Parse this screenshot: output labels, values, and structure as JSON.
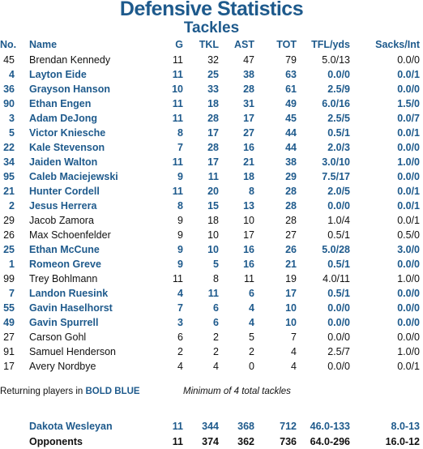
{
  "title": "Defensive Statistics",
  "subtitle": "Tackles",
  "columns": {
    "no": "No.",
    "name": "Name",
    "g": "G",
    "tkl": "TKL",
    "ast": "AST",
    "tot": "TOT",
    "tfl": "TFL/yds",
    "sacks": "Sacks/Int"
  },
  "players": [
    {
      "no": "45",
      "name": "Brendan Kennedy",
      "g": "11",
      "tkl": "32",
      "ast": "47",
      "tot": "79",
      "tfl": "5.0/13",
      "sacks": "0.0/0",
      "returning": false
    },
    {
      "no": "4",
      "name": "Layton Eide",
      "g": "11",
      "tkl": "25",
      "ast": "38",
      "tot": "63",
      "tfl": "0.0/0",
      "sacks": "0.0/1",
      "returning": true
    },
    {
      "no": "36",
      "name": "Grayson Hanson",
      "g": "10",
      "tkl": "33",
      "ast": "28",
      "tot": "61",
      "tfl": "2.5/9",
      "sacks": "0.0/0",
      "returning": true
    },
    {
      "no": "90",
      "name": "Ethan Engen",
      "g": "11",
      "tkl": "18",
      "ast": "31",
      "tot": "49",
      "tfl": "6.0/16",
      "sacks": "1.5/0",
      "returning": true
    },
    {
      "no": "3",
      "name": "Adam DeJong",
      "g": "11",
      "tkl": "28",
      "ast": "17",
      "tot": "45",
      "tfl": "2.5/5",
      "sacks": "0.0/7",
      "returning": true
    },
    {
      "no": "5",
      "name": "Victor Kniesche",
      "g": "8",
      "tkl": "17",
      "ast": "27",
      "tot": "44",
      "tfl": "0.5/1",
      "sacks": "0.0/1",
      "returning": true
    },
    {
      "no": "22",
      "name": "Kale Stevenson",
      "g": "7",
      "tkl": "28",
      "ast": "16",
      "tot": "44",
      "tfl": "2.0/3",
      "sacks": "0.0/0",
      "returning": true
    },
    {
      "no": "34",
      "name": "Jaiden Walton",
      "g": "11",
      "tkl": "17",
      "ast": "21",
      "tot": "38",
      "tfl": "3.0/10",
      "sacks": "1.0/0",
      "returning": true
    },
    {
      "no": "95",
      "name": "Caleb Maciejewski",
      "g": "9",
      "tkl": "11",
      "ast": "18",
      "tot": "29",
      "tfl": "7.5/17",
      "sacks": "0.0/0",
      "returning": true
    },
    {
      "no": "21",
      "name": "Hunter Cordell",
      "g": "11",
      "tkl": "20",
      "ast": "8",
      "tot": "28",
      "tfl": "2.0/5",
      "sacks": "0.0/1",
      "returning": true
    },
    {
      "no": "2",
      "name": "Jesus Herrera",
      "g": "8",
      "tkl": "15",
      "ast": "13",
      "tot": "28",
      "tfl": "0.0/0",
      "sacks": "0.0/1",
      "returning": true
    },
    {
      "no": "29",
      "name": "Jacob Zamora",
      "g": "9",
      "tkl": "18",
      "ast": "10",
      "tot": "28",
      "tfl": "1.0/4",
      "sacks": "0.0/1",
      "returning": false
    },
    {
      "no": "26",
      "name": "Max Schoenfelder",
      "g": "9",
      "tkl": "10",
      "ast": "17",
      "tot": "27",
      "tfl": "0.5/1",
      "sacks": "0.5/0",
      "returning": false
    },
    {
      "no": "25",
      "name": "Ethan McCune",
      "g": "9",
      "tkl": "10",
      "ast": "16",
      "tot": "26",
      "tfl": "5.0/28",
      "sacks": "3.0/0",
      "returning": true
    },
    {
      "no": "1",
      "name": "Romeon Greve",
      "g": "9",
      "tkl": "5",
      "ast": "16",
      "tot": "21",
      "tfl": "0.5/1",
      "sacks": "0.0/0",
      "returning": true
    },
    {
      "no": "99",
      "name": "Trey Bohlmann",
      "g": "11",
      "tkl": "8",
      "ast": "11",
      "tot": "19",
      "tfl": "4.0/11",
      "sacks": "1.0/0",
      "returning": false
    },
    {
      "no": "7",
      "name": "Landon Ruesink",
      "g": "4",
      "tkl": "11",
      "ast": "6",
      "tot": "17",
      "tfl": "0.5/1",
      "sacks": "0.0/0",
      "returning": true
    },
    {
      "no": "55",
      "name": "Gavin Haselhorst",
      "g": "7",
      "tkl": "6",
      "ast": "4",
      "tot": "10",
      "tfl": "0.0/0",
      "sacks": "0.0/0",
      "returning": true
    },
    {
      "no": "49",
      "name": "Gavin Spurrell",
      "g": "3",
      "tkl": "6",
      "ast": "4",
      "tot": "10",
      "tfl": "0.0/0",
      "sacks": "0.0/0",
      "returning": true
    },
    {
      "no": "27",
      "name": "Carson Gohl",
      "g": "6",
      "tkl": "2",
      "ast": "5",
      "tot": "7",
      "tfl": "0.0/0",
      "sacks": "0.0/0",
      "returning": false
    },
    {
      "no": "91",
      "name": "Samuel Henderson",
      "g": "2",
      "tkl": "2",
      "ast": "2",
      "tot": "4",
      "tfl": "2.5/7",
      "sacks": "1.0/0",
      "returning": false
    },
    {
      "no": "17",
      "name": "Avery Nordbye",
      "g": "4",
      "tkl": "4",
      "ast": "0",
      "tot": "4",
      "tfl": "0.0/0",
      "sacks": "0.0/1",
      "returning": false
    }
  ],
  "notes": {
    "returning_prefix": "Returning players in ",
    "returning_bold": "BOLD BLUE",
    "minimum": "Minimum of 4 total tackles"
  },
  "totals": [
    {
      "name": "Dakota Wesleyan",
      "g": "11",
      "tkl": "344",
      "ast": "368",
      "tot": "712",
      "tfl": "46.0-133",
      "sacks": "8.0-13",
      "style": "team"
    },
    {
      "name": "Opponents",
      "g": "11",
      "tkl": "374",
      "ast": "362",
      "tot": "736",
      "tfl": "64.0-296",
      "sacks": "16.0-12",
      "style": "opp"
    }
  ],
  "colors": {
    "accent": "#1e5a8c",
    "text": "#111111",
    "background": "#ffffff"
  }
}
